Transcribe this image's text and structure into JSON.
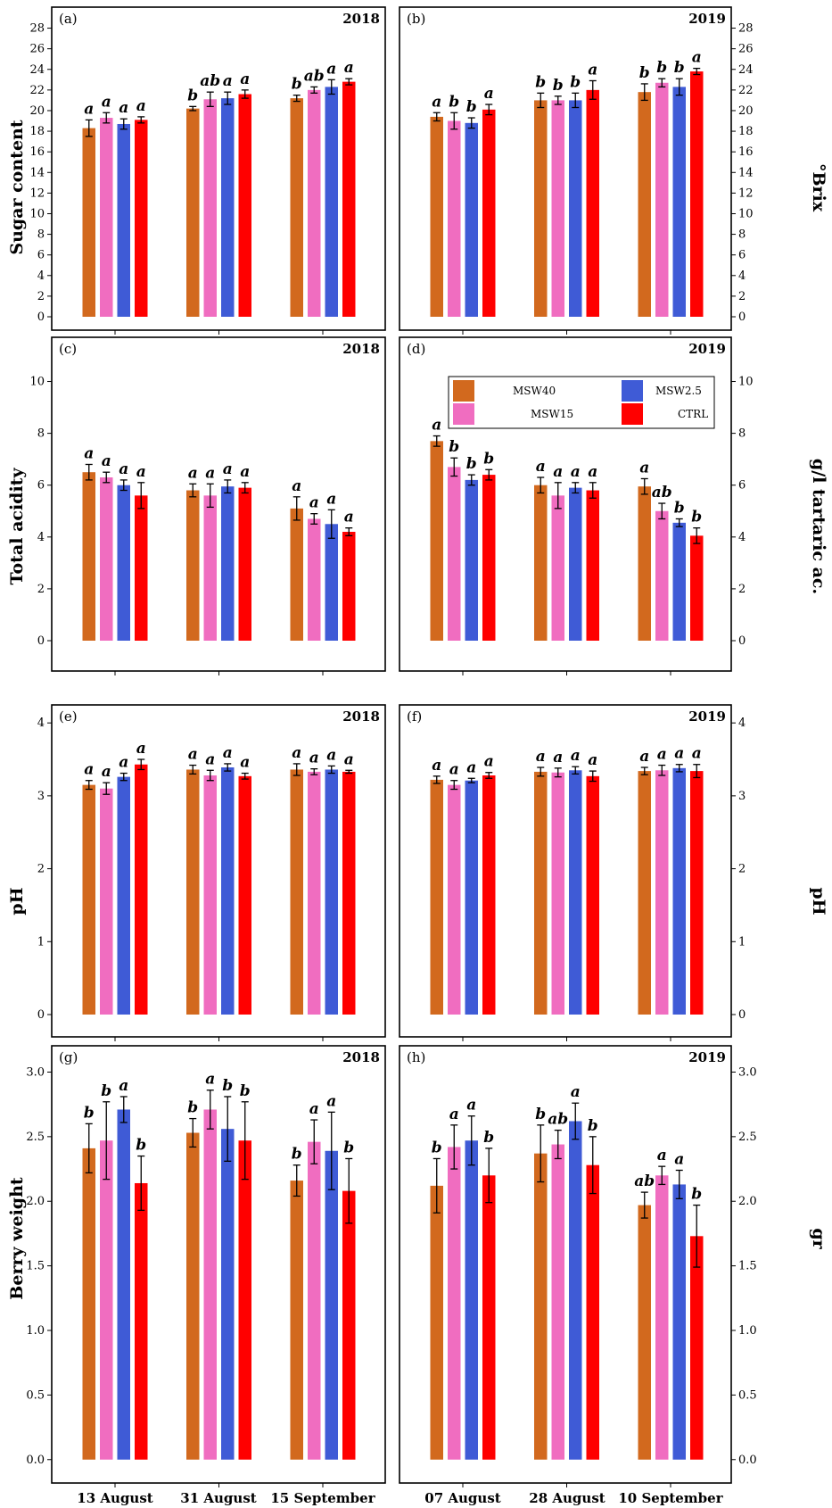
{
  "colors": {
    "MSW40": "#D2691E",
    "MSW15": "#F06DC0",
    "MSW2.5": "#3F5BD6",
    "CTRL": "#FF0000"
  },
  "legend": {
    "placement": "top of panel (d)",
    "entries": [
      "MSW40",
      "MSW2.5",
      "MSW15",
      "CTRL"
    ]
  },
  "categories_2018": [
    "13 August",
    "31 August",
    "15 September"
  ],
  "categories_2019": [
    "07 August",
    "28 August",
    "10 September"
  ],
  "rows": [
    {
      "left_title": "Sugar content",
      "right_title": "°Brix"
    },
    {
      "left_title": "Total acidity",
      "right_title": "g/l tartaric ac."
    },
    {
      "left_title": "pH",
      "right_title": "pH"
    },
    {
      "left_title": "Berry weight",
      "right_title": "gr"
    }
  ],
  "chart_data": [
    {
      "type": "bar",
      "panel": "(a)",
      "year": "2018",
      "categories": [
        "13 August",
        "31 August",
        "15 September"
      ],
      "ylim": [
        0,
        29
      ],
      "yticks": [
        "0",
        "2",
        "4",
        "6",
        "8",
        "10",
        "12",
        "14",
        "16",
        "18",
        "20",
        "22",
        "24",
        "26",
        "28"
      ],
      "series": [
        {
          "name": "MSW40",
          "values": [
            18.3,
            20.2,
            21.2
          ],
          "errors": [
            0.8,
            0.2,
            0.3
          ],
          "letters": [
            "a",
            "b",
            "b"
          ]
        },
        {
          "name": "MSW15",
          "values": [
            19.3,
            21.1,
            22.0
          ],
          "errors": [
            0.5,
            0.7,
            0.3
          ],
          "letters": [
            "a",
            "ab",
            "ab"
          ]
        },
        {
          "name": "MSW2.5",
          "values": [
            18.7,
            21.2,
            22.3
          ],
          "errors": [
            0.5,
            0.6,
            0.7
          ],
          "letters": [
            "a",
            "a",
            "a"
          ]
        },
        {
          "name": "CTRL",
          "values": [
            19.1,
            21.6,
            22.8
          ],
          "errors": [
            0.3,
            0.4,
            0.3
          ],
          "letters": [
            "a",
            "a",
            "a"
          ]
        }
      ]
    },
    {
      "type": "bar",
      "panel": "(b)",
      "year": "2019",
      "categories": [
        "07 August",
        "28 August",
        "10 September"
      ],
      "ylim": [
        0,
        29
      ],
      "yticks": [
        "0",
        "2",
        "4",
        "6",
        "8",
        "10",
        "12",
        "14",
        "16",
        "18",
        "20",
        "22",
        "24",
        "26",
        "28"
      ],
      "series": [
        {
          "name": "MSW40",
          "values": [
            19.4,
            21.0,
            21.8
          ],
          "errors": [
            0.4,
            0.7,
            0.8
          ],
          "letters": [
            "a",
            "b",
            "b"
          ]
        },
        {
          "name": "MSW15",
          "values": [
            19.0,
            21.0,
            22.7
          ],
          "errors": [
            0.8,
            0.4,
            0.4
          ],
          "letters": [
            "b",
            "b",
            "b"
          ]
        },
        {
          "name": "MSW2.5",
          "values": [
            18.8,
            21.0,
            22.3
          ],
          "errors": [
            0.5,
            0.7,
            0.8
          ],
          "letters": [
            "b",
            "b",
            "b"
          ]
        },
        {
          "name": "CTRL",
          "values": [
            20.1,
            22.0,
            23.8
          ],
          "errors": [
            0.5,
            0.9,
            0.3
          ],
          "letters": [
            "a",
            "a",
            "a"
          ]
        }
      ]
    },
    {
      "type": "bar",
      "panel": "(c)",
      "year": "2018",
      "categories": [
        "13 August",
        "31 August",
        "15 September"
      ],
      "ylim": [
        0,
        10.5
      ],
      "yticks": [
        "0",
        "2",
        "4",
        "6",
        "8",
        "10"
      ],
      "series": [
        {
          "name": "MSW40",
          "values": [
            6.5,
            5.8,
            5.1
          ],
          "errors": [
            0.3,
            0.25,
            0.45
          ],
          "letters": [
            "a",
            "a",
            "a"
          ]
        },
        {
          "name": "MSW15",
          "values": [
            6.3,
            5.6,
            4.7
          ],
          "errors": [
            0.2,
            0.45,
            0.2
          ],
          "letters": [
            "a",
            "a",
            "a"
          ]
        },
        {
          "name": "MSW2.5",
          "values": [
            6.0,
            5.95,
            4.5
          ],
          "errors": [
            0.2,
            0.25,
            0.55
          ],
          "letters": [
            "a",
            "a",
            "a"
          ]
        },
        {
          "name": "CTRL",
          "values": [
            5.6,
            5.9,
            4.2
          ],
          "errors": [
            0.5,
            0.2,
            0.15
          ],
          "letters": [
            "a",
            "a",
            "a"
          ]
        }
      ]
    },
    {
      "type": "bar",
      "panel": "(d)",
      "year": "2019",
      "categories": [
        "07 August",
        "28 August",
        "10 September"
      ],
      "ylim": [
        0,
        10.5
      ],
      "yticks": [
        "0",
        "2",
        "4",
        "6",
        "8",
        "10"
      ],
      "series": [
        {
          "name": "MSW40",
          "values": [
            7.7,
            6.0,
            5.95
          ],
          "errors": [
            0.2,
            0.3,
            0.3
          ],
          "letters": [
            "a",
            "a",
            "a"
          ]
        },
        {
          "name": "MSW15",
          "values": [
            6.7,
            5.6,
            5.0
          ],
          "errors": [
            0.35,
            0.5,
            0.3
          ],
          "letters": [
            "b",
            "a",
            "ab"
          ]
        },
        {
          "name": "MSW2.5",
          "values": [
            6.2,
            5.9,
            4.55
          ],
          "errors": [
            0.2,
            0.2,
            0.15
          ],
          "letters": [
            "b",
            "a",
            "b"
          ]
        },
        {
          "name": "CTRL",
          "values": [
            6.4,
            5.8,
            4.05
          ],
          "errors": [
            0.2,
            0.3,
            0.3
          ],
          "letters": [
            "b",
            "a",
            "b"
          ]
        }
      ]
    },
    {
      "type": "bar",
      "panel": "(e)",
      "year": "2018",
      "categories": [
        "13 August",
        "31 August",
        "15 September"
      ],
      "ylim": [
        0,
        4.1
      ],
      "yticks": [
        "0",
        "1",
        "2",
        "3",
        "4"
      ],
      "series": [
        {
          "name": "MSW40",
          "values": [
            3.15,
            3.36,
            3.36
          ],
          "errors": [
            0.06,
            0.06,
            0.08
          ],
          "letters": [
            "a",
            "a",
            "a"
          ]
        },
        {
          "name": "MSW15",
          "values": [
            3.1,
            3.28,
            3.33
          ],
          "errors": [
            0.08,
            0.07,
            0.04
          ],
          "letters": [
            "a",
            "a",
            "a"
          ]
        },
        {
          "name": "MSW2.5",
          "values": [
            3.26,
            3.39,
            3.36
          ],
          "errors": [
            0.05,
            0.05,
            0.05
          ],
          "letters": [
            "a",
            "a",
            "a"
          ]
        },
        {
          "name": "CTRL",
          "values": [
            3.43,
            3.27,
            3.33
          ],
          "errors": [
            0.07,
            0.04,
            0.02
          ],
          "letters": [
            "a",
            "a",
            "a"
          ]
        }
      ]
    },
    {
      "type": "bar",
      "panel": "(f)",
      "year": "2019",
      "categories": [
        "07 August",
        "28 August",
        "10 September"
      ],
      "ylim": [
        0,
        4.1
      ],
      "yticks": [
        "0",
        "1",
        "2",
        "3",
        "4"
      ],
      "series": [
        {
          "name": "MSW40",
          "values": [
            3.22,
            3.33,
            3.34
          ],
          "errors": [
            0.05,
            0.06,
            0.05
          ],
          "letters": [
            "a",
            "a",
            "a"
          ]
        },
        {
          "name": "MSW15",
          "values": [
            3.15,
            3.32,
            3.35
          ],
          "errors": [
            0.06,
            0.06,
            0.07
          ],
          "letters": [
            "a",
            "a",
            "a"
          ]
        },
        {
          "name": "MSW2.5",
          "values": [
            3.21,
            3.35,
            3.38
          ],
          "errors": [
            0.03,
            0.05,
            0.05
          ],
          "letters": [
            "a",
            "a",
            "a"
          ]
        },
        {
          "name": "CTRL",
          "values": [
            3.28,
            3.27,
            3.34
          ],
          "errors": [
            0.04,
            0.07,
            0.09
          ],
          "letters": [
            "a",
            "a",
            "a"
          ]
        }
      ]
    },
    {
      "type": "bar",
      "panel": "(g)",
      "year": "2018",
      "categories": [
        "13 August",
        "31 August",
        "15 September"
      ],
      "ylim": [
        -0.05,
        3.1
      ],
      "yticks": [
        "0.0",
        "0.5",
        "1.0",
        "1.5",
        "2.0",
        "2.5",
        "3.0"
      ],
      "series": [
        {
          "name": "MSW40",
          "values": [
            2.41,
            2.53,
            2.16
          ],
          "errors": [
            0.19,
            0.11,
            0.12
          ],
          "letters": [
            "b",
            "b",
            "b"
          ]
        },
        {
          "name": "MSW15",
          "values": [
            2.47,
            2.71,
            2.46
          ],
          "errors": [
            0.3,
            0.15,
            0.17
          ],
          "letters": [
            "b",
            "a",
            "a"
          ]
        },
        {
          "name": "MSW2.5",
          "values": [
            2.71,
            2.56,
            2.39
          ],
          "errors": [
            0.1,
            0.25,
            0.3
          ],
          "letters": [
            "a",
            "b",
            "a"
          ]
        },
        {
          "name": "CTRL",
          "values": [
            2.14,
            2.47,
            2.08
          ],
          "errors": [
            0.21,
            0.3,
            0.25
          ],
          "letters": [
            "b",
            "b",
            "b"
          ]
        }
      ]
    },
    {
      "type": "bar",
      "panel": "(h)",
      "year": "2019",
      "categories": [
        "07 August",
        "28 August",
        "10 September"
      ],
      "ylim": [
        -0.05,
        3.1
      ],
      "yticks": [
        "0.0",
        "0.5",
        "1.0",
        "1.5",
        "2.0",
        "2.5",
        "3.0"
      ],
      "series": [
        {
          "name": "MSW40",
          "values": [
            2.12,
            2.37,
            1.97
          ],
          "errors": [
            0.21,
            0.22,
            0.1
          ],
          "letters": [
            "b",
            "b",
            "ab"
          ]
        },
        {
          "name": "MSW15",
          "values": [
            2.42,
            2.44,
            2.2
          ],
          "errors": [
            0.17,
            0.11,
            0.07
          ],
          "letters": [
            "a",
            "ab",
            "a"
          ]
        },
        {
          "name": "MSW2.5",
          "values": [
            2.47,
            2.62,
            2.13
          ],
          "errors": [
            0.19,
            0.14,
            0.11
          ],
          "letters": [
            "a",
            "a",
            "a"
          ]
        },
        {
          "name": "CTRL",
          "values": [
            2.2,
            2.28,
            1.73
          ],
          "errors": [
            0.21,
            0.22,
            0.24
          ],
          "letters": [
            "b",
            "b",
            "b"
          ]
        }
      ]
    }
  ]
}
